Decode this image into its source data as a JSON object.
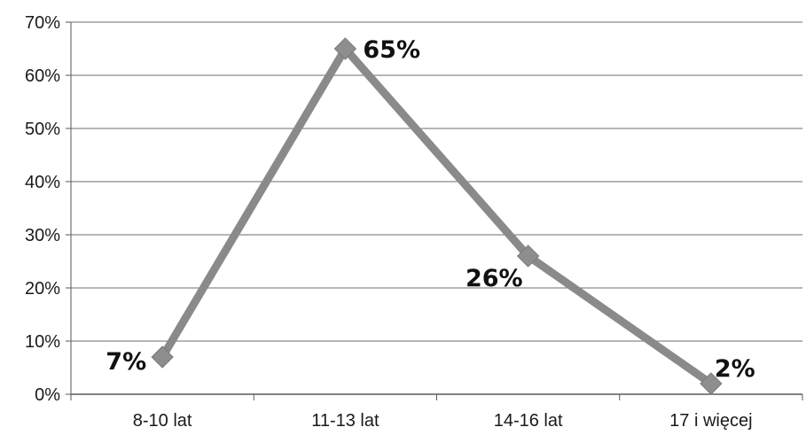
{
  "chart_data": {
    "type": "line",
    "title": "",
    "xlabel": "",
    "ylabel": "",
    "categories": [
      "8-10 lat",
      "11-13 lat",
      "14-16 lat",
      "17 i więcej"
    ],
    "series": [
      {
        "values": [
          7,
          65,
          26,
          2
        ],
        "data_labels": [
          "7%",
          "65%",
          "26%",
          "2%"
        ],
        "color": "#8a8a8a",
        "marker": "diamond"
      }
    ],
    "ylim": [
      0,
      70
    ],
    "yticks": [
      0,
      10,
      20,
      30,
      40,
      50,
      60,
      70
    ],
    "ytick_labels": [
      "0%",
      "10%",
      "20%",
      "30%",
      "40%",
      "50%",
      "60%",
      "70%"
    ],
    "grid": true,
    "legend": "none",
    "colors": {
      "line": "#8a8a8a",
      "marker": "#8e8e8e",
      "gridline": "#6e6e6e",
      "axis": "#5a5a5a",
      "text": "#1a1a1a"
    }
  }
}
